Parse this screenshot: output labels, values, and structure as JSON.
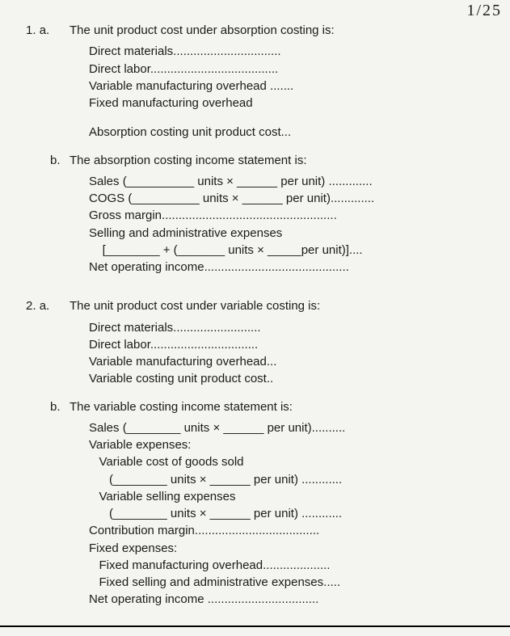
{
  "handwritten_corner": "1/25",
  "q1": {
    "number": "1.",
    "a": {
      "letter": "a.",
      "prompt": "The unit product cost under absorption costing is:",
      "lines": [
        "Direct materials................................",
        "Direct labor......................................",
        "Variable manufacturing overhead .......",
        "Fixed manufacturing overhead",
        "",
        "Absorption costing unit product cost..."
      ]
    },
    "b": {
      "letter": "b.",
      "prompt": "The absorption costing income statement is:",
      "lines": [
        "Sales (__________ units × ______ per unit) .............",
        "COGS (__________ units × ______ per unit).............",
        "Gross margin....................................................",
        "Selling and administrative expenses",
        "    [________ + (_______ units × _____per unit)]....",
        "Net operating income..........................................."
      ]
    }
  },
  "q2": {
    "number": "2.",
    "a": {
      "letter": "a.",
      "prompt": "The unit product cost under variable costing is:",
      "lines": [
        "Direct materials..........................",
        "Direct labor................................",
        "Variable manufacturing overhead...",
        "Variable costing unit product cost.."
      ]
    },
    "b": {
      "letter": "b.",
      "prompt": "The variable costing income statement is:",
      "lines": [
        "Sales (________ units × ______ per unit)..........",
        "Variable expenses:",
        "   Variable cost of goods sold",
        "      (________ units × ______ per unit) ............",
        "   Variable selling expenses",
        "      (________ units × ______ per unit) ............",
        "Contribution margin.....................................",
        "Fixed expenses:",
        "   Fixed manufacturing overhead....................",
        "   Fixed selling and administrative expenses.....",
        "Net operating income ................................."
      ]
    }
  }
}
